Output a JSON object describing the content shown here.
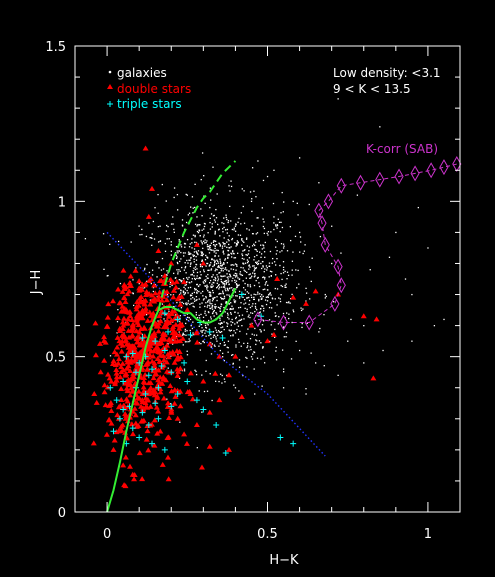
{
  "chart_data": {
    "type": "scatter",
    "title": "",
    "xlabel": "H−K",
    "ylabel": "J−H",
    "xlim": [
      -0.1,
      1.1
    ],
    "ylim": [
      0,
      1.5
    ],
    "x_ticks": [
      {
        "value": 0,
        "label": "0"
      },
      {
        "value": 0.5,
        "label": "0.5"
      },
      {
        "value": 1,
        "label": "1"
      }
    ],
    "y_ticks": [
      {
        "value": 0,
        "label": "0"
      },
      {
        "value": 0.5,
        "label": "0.5"
      },
      {
        "value": 1,
        "label": "1"
      },
      {
        "value": 1.5,
        "label": "1.5"
      }
    ],
    "grid": false,
    "legend_position": "top-left",
    "annotations": [
      {
        "text": "Low density: <3.1",
        "position": "top-right"
      },
      {
        "text": "9 < K < 13.5",
        "position": "top-right"
      }
    ],
    "series": [
      {
        "name": "galaxies",
        "marker": "dot",
        "color": "#ffffff",
        "cluster": {
          "center": [
            0.35,
            0.73
          ],
          "count": 1500
        },
        "points": [
          [
            0.13,
            0.93
          ],
          [
            0.2,
            0.86
          ],
          [
            0.25,
            1.02
          ],
          [
            0.33,
            1.11
          ],
          [
            0.47,
            1.13
          ],
          [
            0.5,
            1.08
          ],
          [
            0.63,
            0.99
          ],
          [
            0.7,
            0.92
          ],
          [
            0.72,
            1.33
          ],
          [
            0.85,
            1.24
          ],
          [
            0.88,
            0.82
          ],
          [
            0.95,
            0.7
          ],
          [
            0.97,
            0.98
          ],
          [
            1.02,
            0.6
          ],
          [
            0.8,
            0.6
          ],
          [
            0.75,
            0.55
          ],
          [
            0.65,
            0.48
          ],
          [
            0.55,
            0.46
          ],
          [
            0.45,
            0.5
          ],
          [
            0.6,
            0.52
          ],
          [
            0.9,
            0.9
          ],
          [
            0.68,
            0.7
          ],
          [
            0.58,
            0.65
          ],
          [
            0.4,
            0.92
          ],
          [
            0.32,
            0.98
          ],
          [
            0.28,
            0.95
          ],
          [
            0.42,
            0.6
          ],
          [
            0.48,
            0.58
          ],
          [
            0.3,
            0.55
          ],
          [
            0.36,
            0.5
          ],
          [
            0.93,
            0.75
          ],
          [
            1.0,
            0.85
          ],
          [
            0.82,
            0.78
          ],
          [
            0.76,
            0.62
          ],
          [
            0.7,
            0.8
          ],
          [
            0.62,
            0.72
          ],
          [
            0.55,
            0.85
          ],
          [
            0.6,
            0.9
          ],
          [
            0.52,
            0.95
          ],
          [
            0.45,
            1.0
          ],
          [
            0.38,
            1.05
          ],
          [
            0.22,
            0.8
          ],
          [
            0.24,
            0.7
          ],
          [
            0.26,
            0.62
          ],
          [
            0.35,
            0.58
          ],
          [
            0.5,
            0.68
          ],
          [
            0.55,
            0.78
          ],
          [
            0.42,
            0.88
          ],
          [
            0.3,
            0.83
          ],
          [
            0.66,
            0.58
          ],
          [
            0.4,
            0.4
          ],
          [
            0.55,
            0.4
          ],
          [
            0.46,
            0.38
          ],
          [
            0.62,
            0.38
          ],
          [
            0.72,
            0.44
          ],
          [
            0.8,
            0.48
          ],
          [
            0.86,
            0.52
          ],
          [
            0.95,
            0.55
          ],
          [
            1.05,
            0.62
          ],
          [
            0.78,
            1.02
          ],
          [
            0.66,
            1.06
          ],
          [
            0.58,
            1.0
          ],
          [
            0.52,
            1.1
          ],
          [
            0.6,
            1.14
          ]
        ]
      },
      {
        "name": "double stars",
        "marker": "triangle",
        "color": "#ff0000",
        "cluster": {
          "center": [
            0.07,
            0.45
          ],
          "count": 600
        },
        "points": [
          [
            0.12,
            1.17
          ],
          [
            0.14,
            1.04
          ],
          [
            0.13,
            0.95
          ],
          [
            0.16,
            0.84
          ],
          [
            0.2,
            0.8
          ],
          [
            0.18,
            0.76
          ],
          [
            0.24,
            0.74
          ],
          [
            0.12,
            0.68
          ],
          [
            0.28,
            0.58
          ],
          [
            0.32,
            0.54
          ],
          [
            0.35,
            0.5
          ],
          [
            0.4,
            0.5
          ],
          [
            0.38,
            0.44
          ],
          [
            0.3,
            0.42
          ],
          [
            0.26,
            0.38
          ],
          [
            0.35,
            0.36
          ],
          [
            0.42,
            0.37
          ],
          [
            0.32,
            0.32
          ],
          [
            0.28,
            0.28
          ],
          [
            0.32,
            0.21
          ],
          [
            0.38,
            0.2
          ],
          [
            0.05,
            0.15
          ],
          [
            0.08,
            0.12
          ],
          [
            0.02,
            0.2
          ],
          [
            -0.02,
            0.45
          ],
          [
            -0.04,
            0.38
          ],
          [
            -0.01,
            0.55
          ],
          [
            0.2,
            0.45
          ],
          [
            0.22,
            0.55
          ],
          [
            0.18,
            0.6
          ],
          [
            0.25,
            0.65
          ],
          [
            0.15,
            0.55
          ],
          [
            0.19,
            0.35
          ],
          [
            0.22,
            0.3
          ],
          [
            0.24,
            0.25
          ],
          [
            0.45,
            0.6
          ],
          [
            0.5,
            0.55
          ],
          [
            0.53,
            0.75
          ],
          [
            0.58,
            0.69
          ],
          [
            0.62,
            0.67
          ],
          [
            0.65,
            0.71
          ],
          [
            0.83,
            0.43
          ],
          [
            0.72,
            0.7
          ],
          [
            0.8,
            0.63
          ],
          [
            0.84,
            0.62
          ],
          [
            0.52,
            0.57
          ],
          [
            0.28,
            0.86
          ],
          [
            0.3,
            0.8
          ],
          [
            0.1,
            0.72
          ],
          [
            0.06,
            0.65
          ]
        ]
      },
      {
        "name": "triple stars",
        "marker": "plus",
        "color": "#00ffff",
        "points": [
          [
            0.06,
            0.5
          ],
          [
            0.08,
            0.51
          ],
          [
            0.12,
            0.5
          ],
          [
            0.15,
            0.55
          ],
          [
            0.18,
            0.52
          ],
          [
            0.1,
            0.48
          ],
          [
            0.14,
            0.46
          ],
          [
            0.05,
            0.42
          ],
          [
            0.09,
            0.4
          ],
          [
            0.12,
            0.38
          ],
          [
            0.16,
            0.4
          ],
          [
            0.2,
            0.45
          ],
          [
            0.24,
            0.48
          ],
          [
            0.03,
            0.36
          ],
          [
            0.07,
            0.34
          ],
          [
            0.11,
            0.32
          ],
          [
            0.04,
            0.3
          ],
          [
            0.08,
            0.27
          ],
          [
            0.13,
            0.28
          ],
          [
            0.16,
            0.3
          ],
          [
            0.06,
            0.22
          ],
          [
            0.1,
            0.24
          ],
          [
            0.02,
            0.26
          ],
          [
            0.14,
            0.22
          ],
          [
            0.18,
            0.2
          ],
          [
            0.2,
            0.34
          ],
          [
            0.22,
            0.38
          ],
          [
            0.25,
            0.42
          ],
          [
            0.28,
            0.36
          ],
          [
            0.3,
            0.33
          ],
          [
            0.34,
            0.28
          ],
          [
            0.36,
            0.56
          ],
          [
            0.32,
            0.58
          ],
          [
            0.29,
            0.61
          ],
          [
            0.26,
            0.57
          ],
          [
            0.22,
            0.62
          ],
          [
            0.18,
            0.64
          ],
          [
            0.42,
            0.7
          ],
          [
            0.48,
            0.63
          ],
          [
            0.54,
            0.24
          ],
          [
            0.37,
            0.19
          ],
          [
            0.58,
            0.22
          ],
          [
            0.01,
            0.4
          ],
          [
            0.09,
            0.45
          ],
          [
            0.13,
            0.44
          ],
          [
            0.17,
            0.47
          ],
          [
            0.11,
            0.56
          ],
          [
            0.19,
            0.58
          ],
          [
            0.05,
            0.33
          ],
          [
            0.15,
            0.35
          ]
        ]
      },
      {
        "name": "green track",
        "marker": "line",
        "color": "#33ee33",
        "style": "solid",
        "points": [
          [
            0,
            0
          ],
          [
            0.02,
            0.07
          ],
          [
            0.04,
            0.16
          ],
          [
            0.06,
            0.26
          ],
          [
            0.08,
            0.35
          ],
          [
            0.1,
            0.44
          ],
          [
            0.12,
            0.53
          ],
          [
            0.14,
            0.6
          ],
          [
            0.16,
            0.65
          ],
          [
            0.18,
            0.66
          ],
          [
            0.2,
            0.66
          ],
          [
            0.22,
            0.65
          ],
          [
            0.24,
            0.64
          ],
          [
            0.26,
            0.64
          ],
          [
            0.28,
            0.62
          ],
          [
            0.3,
            0.61
          ],
          [
            0.32,
            0.61
          ],
          [
            0.34,
            0.62
          ],
          [
            0.36,
            0.64
          ],
          [
            0.38,
            0.68
          ],
          [
            0.4,
            0.72
          ]
        ]
      },
      {
        "name": "green dashed track",
        "marker": "line",
        "color": "#33ee33",
        "style": "dashed",
        "points": [
          [
            0.16,
            0.65
          ],
          [
            0.18,
            0.73
          ],
          [
            0.2,
            0.8
          ],
          [
            0.22,
            0.85
          ],
          [
            0.24,
            0.9
          ],
          [
            0.26,
            0.94
          ],
          [
            0.28,
            0.98
          ],
          [
            0.3,
            1.01
          ],
          [
            0.32,
            1.03
          ],
          [
            0.34,
            1.06
          ],
          [
            0.36,
            1.09
          ],
          [
            0.38,
            1.11
          ],
          [
            0.4,
            1.13
          ]
        ]
      },
      {
        "name": "blue dotted locus",
        "marker": "dotted-line",
        "color": "#2233ff",
        "points": [
          [
            0,
            0.9
          ],
          [
            0.2,
            0.68
          ],
          [
            0.35,
            0.5
          ],
          [
            0.5,
            0.38
          ],
          [
            0.68,
            0.18
          ]
        ]
      },
      {
        "name": "K-corr (SAB)",
        "marker": "diamond-line",
        "color": "#cc33cc",
        "points": [
          [
            0.47,
            0.62
          ],
          [
            0.55,
            0.61
          ],
          [
            0.63,
            0.61
          ],
          [
            0.71,
            0.67
          ],
          [
            0.73,
            0.73
          ],
          [
            0.72,
            0.79
          ],
          [
            0.68,
            0.86
          ],
          [
            0.67,
            0.93
          ],
          [
            0.66,
            0.97
          ],
          [
            0.69,
            1.0
          ],
          [
            0.73,
            1.05
          ],
          [
            0.79,
            1.06
          ],
          [
            0.85,
            1.07
          ],
          [
            0.91,
            1.08
          ],
          [
            0.96,
            1.09
          ],
          [
            1.01,
            1.1
          ],
          [
            1.05,
            1.11
          ],
          [
            1.09,
            1.12
          ]
        ]
      }
    ]
  }
}
